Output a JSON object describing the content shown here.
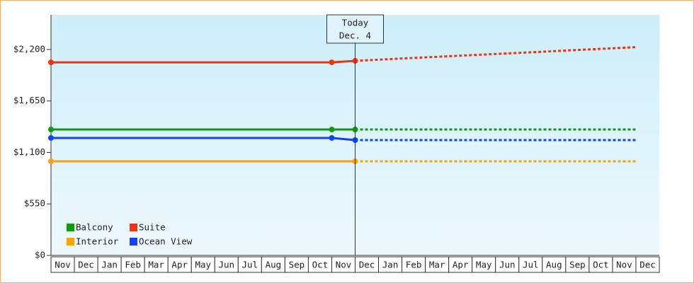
{
  "chart_data": {
    "type": "line",
    "categories": [
      "Nov",
      "Dec",
      "Jan",
      "Feb",
      "Mar",
      "Apr",
      "May",
      "Jun",
      "Jul",
      "Aug",
      "Sep",
      "Oct",
      "Nov",
      "Dec",
      "Jan",
      "Feb",
      "Mar",
      "Apr",
      "May",
      "Jun",
      "Jul",
      "Aug",
      "Sep",
      "Oct",
      "Nov",
      "Dec"
    ],
    "ylim": [
      0,
      2570
    ],
    "yticks": [
      {
        "value": 0,
        "label": "$0"
      },
      {
        "value": 550,
        "label": "$550"
      },
      {
        "value": 1100,
        "label": "$1,100"
      },
      {
        "value": 1650,
        "label": "$1,650"
      },
      {
        "value": 2200,
        "label": "$2,200"
      }
    ],
    "annotation": {
      "text": [
        "Today",
        "Dec. 4"
      ],
      "at": 13
    },
    "series": [
      {
        "name": "Balcony",
        "color": "#119911",
        "markers": [
          0,
          12,
          13
        ],
        "values": [
          1345,
          1345,
          1345,
          1345,
          1345,
          1345,
          1345,
          1345,
          1345,
          1345,
          1345,
          1345,
          1345,
          1345,
          null,
          null,
          null,
          null,
          null,
          null,
          null,
          null,
          null,
          null,
          null,
          null
        ],
        "forecast": [
          null,
          null,
          null,
          null,
          null,
          null,
          null,
          null,
          null,
          null,
          null,
          null,
          null,
          1345,
          1345,
          1345,
          1345,
          1345,
          1345,
          1345,
          1345,
          1345,
          1345,
          1345,
          1345,
          1345
        ]
      },
      {
        "name": "Suite",
        "color": "#ee3311",
        "markers": [
          0,
          12,
          13
        ],
        "values": [
          2063,
          2063,
          2063,
          2063,
          2063,
          2063,
          2063,
          2063,
          2063,
          2063,
          2063,
          2063,
          2063,
          2079,
          null,
          null,
          null,
          null,
          null,
          null,
          null,
          null,
          null,
          null,
          null,
          null
        ],
        "forecast": [
          null,
          null,
          null,
          null,
          null,
          null,
          null,
          null,
          null,
          null,
          null,
          null,
          null,
          2079,
          2091,
          2104,
          2116,
          2128,
          2140,
          2152,
          2164,
          2176,
          2189,
          2201,
          2213,
          2225
        ]
      },
      {
        "name": "Interior",
        "color": "#f5a311",
        "markers": [
          0,
          13
        ],
        "values": [
          1005,
          1005,
          1005,
          1005,
          1005,
          1005,
          1005,
          1005,
          1005,
          1005,
          1005,
          1005,
          1005,
          1005,
          null,
          null,
          null,
          null,
          null,
          null,
          null,
          null,
          null,
          null,
          null,
          null
        ],
        "forecast": [
          null,
          null,
          null,
          null,
          null,
          null,
          null,
          null,
          null,
          null,
          null,
          null,
          null,
          1005,
          1005,
          1005,
          1005,
          1005,
          1005,
          1005,
          1005,
          1005,
          1005,
          1005,
          1005,
          1005
        ]
      },
      {
        "name": "Ocean View",
        "color": "#1144ee",
        "markers": [
          0,
          12,
          13
        ],
        "values": [
          1255,
          1255,
          1255,
          1255,
          1255,
          1255,
          1255,
          1255,
          1255,
          1255,
          1255,
          1255,
          1255,
          1232,
          null,
          null,
          null,
          null,
          null,
          null,
          null,
          null,
          null,
          null,
          null,
          null
        ],
        "forecast": [
          null,
          null,
          null,
          null,
          null,
          null,
          null,
          null,
          null,
          null,
          null,
          null,
          null,
          1232,
          1232,
          1232,
          1232,
          1232,
          1232,
          1232,
          1232,
          1232,
          1232,
          1232,
          1232,
          1232
        ]
      }
    ]
  }
}
